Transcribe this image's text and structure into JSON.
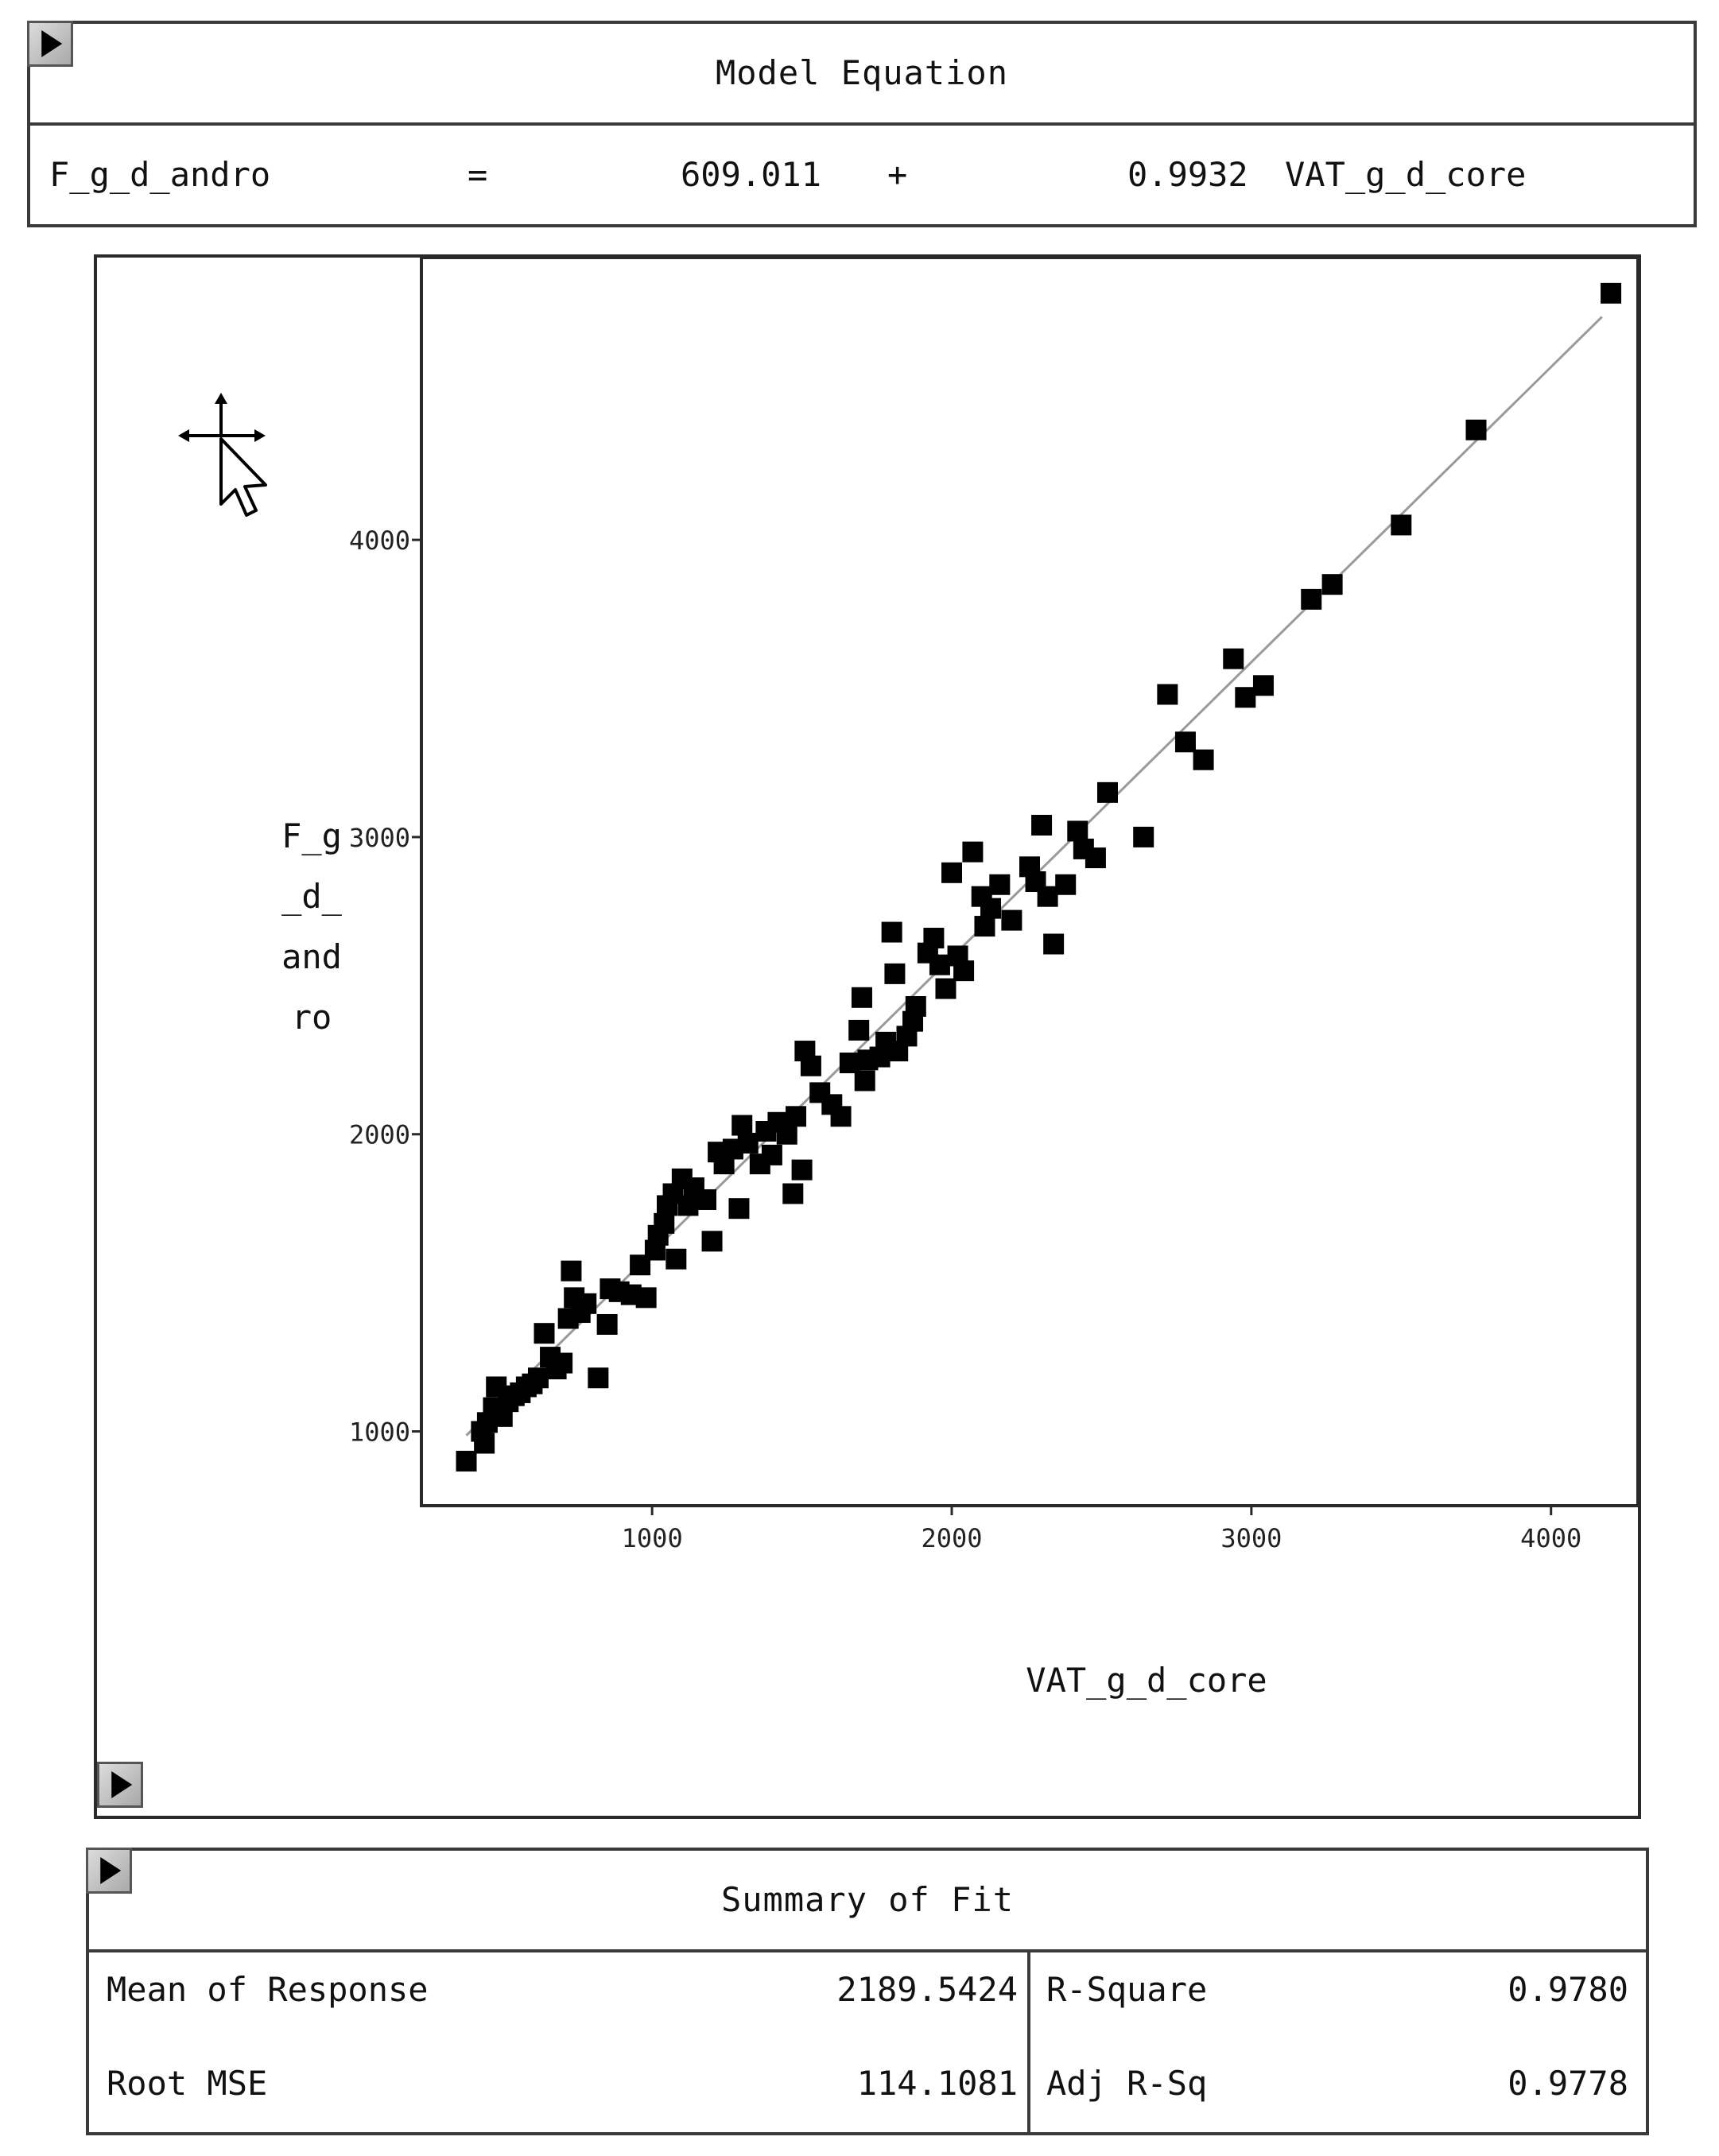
{
  "model_equation": {
    "title": "Model Equation",
    "response": "F_g_d_andro",
    "equals": "=",
    "intercept": "609.011",
    "plus": "+",
    "slope": "0.9932",
    "predictor": "VAT_g_d_core"
  },
  "chart_data": {
    "type": "scatter",
    "xlabel": "VAT_g_d_core",
    "ylabel": "F_g_d_andro",
    "xlim": [
      230,
      4290
    ],
    "ylim": [
      750,
      4950
    ],
    "xticks": [
      1000,
      2000,
      3000,
      4000
    ],
    "yticks": [
      1000,
      2000,
      3000,
      4000
    ],
    "xtick_labels": [
      "1000",
      "2000",
      "3000",
      "4000"
    ],
    "ytick_labels": [
      "1000",
      "2000",
      "3000",
      "4000"
    ],
    "grid": false,
    "marker": "square",
    "fit_line": {
      "intercept": 609.011,
      "slope": 0.9932,
      "x_range": [
        380,
        4170
      ]
    },
    "points": [
      [
        380,
        900
      ],
      [
        430,
        1000
      ],
      [
        440,
        960
      ],
      [
        450,
        1030
      ],
      [
        470,
        1080
      ],
      [
        480,
        1150
      ],
      [
        500,
        1050
      ],
      [
        520,
        1100
      ],
      [
        540,
        1120
      ],
      [
        560,
        1130
      ],
      [
        580,
        1150
      ],
      [
        600,
        1160
      ],
      [
        620,
        1180
      ],
      [
        640,
        1330
      ],
      [
        660,
        1250
      ],
      [
        680,
        1210
      ],
      [
        700,
        1230
      ],
      [
        720,
        1380
      ],
      [
        730,
        1540
      ],
      [
        740,
        1450
      ],
      [
        760,
        1400
      ],
      [
        780,
        1430
      ],
      [
        820,
        1180
      ],
      [
        850,
        1360
      ],
      [
        860,
        1480
      ],
      [
        890,
        1470
      ],
      [
        930,
        1460
      ],
      [
        960,
        1560
      ],
      [
        980,
        1450
      ],
      [
        1010,
        1610
      ],
      [
        1020,
        1660
      ],
      [
        1040,
        1700
      ],
      [
        1050,
        1760
      ],
      [
        1070,
        1800
      ],
      [
        1080,
        1580
      ],
      [
        1100,
        1850
      ],
      [
        1120,
        1760
      ],
      [
        1140,
        1820
      ],
      [
        1180,
        1780
      ],
      [
        1200,
        1640
      ],
      [
        1220,
        1940
      ],
      [
        1240,
        1900
      ],
      [
        1270,
        1950
      ],
      [
        1290,
        1750
      ],
      [
        1300,
        2030
      ],
      [
        1320,
        1970
      ],
      [
        1360,
        1900
      ],
      [
        1380,
        2010
      ],
      [
        1400,
        1930
      ],
      [
        1420,
        2040
      ],
      [
        1450,
        2000
      ],
      [
        1470,
        1800
      ],
      [
        1480,
        2060
      ],
      [
        1500,
        1880
      ],
      [
        1510,
        2280
      ],
      [
        1530,
        2230
      ],
      [
        1560,
        2140
      ],
      [
        1600,
        2100
      ],
      [
        1630,
        2060
      ],
      [
        1660,
        2240
      ],
      [
        1690,
        2350
      ],
      [
        1700,
        2460
      ],
      [
        1710,
        2180
      ],
      [
        1720,
        2250
      ],
      [
        1760,
        2260
      ],
      [
        1780,
        2310
      ],
      [
        1800,
        2680
      ],
      [
        1810,
        2540
      ],
      [
        1820,
        2280
      ],
      [
        1850,
        2330
      ],
      [
        1870,
        2380
      ],
      [
        1880,
        2430
      ],
      [
        1920,
        2610
      ],
      [
        1940,
        2660
      ],
      [
        1960,
        2570
      ],
      [
        1980,
        2490
      ],
      [
        2000,
        2880
      ],
      [
        2020,
        2600
      ],
      [
        2040,
        2550
      ],
      [
        2070,
        2950
      ],
      [
        2100,
        2800
      ],
      [
        2110,
        2700
      ],
      [
        2130,
        2760
      ],
      [
        2160,
        2840
      ],
      [
        2200,
        2720
      ],
      [
        2260,
        2900
      ],
      [
        2280,
        2850
      ],
      [
        2300,
        3040
      ],
      [
        2320,
        2800
      ],
      [
        2340,
        2640
      ],
      [
        2380,
        2840
      ],
      [
        2420,
        3020
      ],
      [
        2440,
        2960
      ],
      [
        2480,
        2930
      ],
      [
        2520,
        3150
      ],
      [
        2640,
        3000
      ],
      [
        2720,
        3480
      ],
      [
        2780,
        3320
      ],
      [
        2840,
        3260
      ],
      [
        2940,
        3600
      ],
      [
        2980,
        3470
      ],
      [
        3040,
        3510
      ],
      [
        3200,
        3800
      ],
      [
        3270,
        3850
      ],
      [
        3500,
        4050
      ],
      [
        3750,
        4370
      ],
      [
        4200,
        4830
      ]
    ]
  },
  "summary_of_fit": {
    "title": "Summary of Fit",
    "rows": [
      {
        "label": "Mean of Response",
        "value": "2189.5424",
        "label2": "R-Square",
        "value2": "0.9780"
      },
      {
        "label": "Root MSE",
        "value": "114.1081",
        "label2": "Adj R-Sq",
        "value2": "0.9778"
      }
    ]
  },
  "icons": {
    "disclosure": "triangle-right-icon",
    "cursor": "move-cursor-icon"
  },
  "colors": {
    "marker": "#000000",
    "fit_line": "#9a9a9a",
    "border": "#3a3a3a"
  }
}
